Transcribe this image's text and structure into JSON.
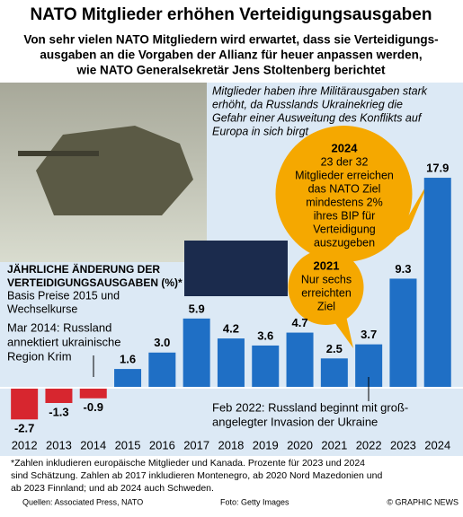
{
  "chart_data": {
    "type": "bar",
    "title": "NATO Mitglieder erhöhen Verteidigungsausgaben",
    "subtitle": [
      "Von sehr vielen NATO Mitgliedern wird erwartet, dass sie Verteidigungs-",
      "ausgaben  an die Vorgaben der Allianz für heuer anpassen werden,",
      "wie NATO Generalsekretär Jens Stoltenberg berichtet"
    ],
    "photo_caption": [
      "Mitglieder haben ihre Militärausgaben stark",
      "erhöht, da Russlands Ukrainekrieg die",
      "Gefahr einer Ausweitung des Konflikts auf",
      "Europa  in sich birgt"
    ],
    "chart_label": [
      "JÄHRLICHE ÄNDERUNG DER",
      "VERTEIDIGUNGSAUSGABEN (%)*"
    ],
    "chart_sublabel": [
      "Basis Preise 2015 und",
      "Wechselkurse"
    ],
    "categories": [
      "2012",
      "2013",
      "2014",
      "2015",
      "2016",
      "2017",
      "2018",
      "2019",
      "2020",
      "2021",
      "2022",
      "2023",
      "2024"
    ],
    "values": [
      -2.7,
      -1.3,
      -0.9,
      1.6,
      3.0,
      5.9,
      4.2,
      3.6,
      4.7,
      2.5,
      3.7,
      9.3,
      17.9
    ],
    "value_labels": [
      "-2.7",
      "-1.3",
      "-0.9",
      "1.6",
      "3.0",
      "5.9",
      "4.2",
      "3.6",
      "4.7",
      "2.5",
      "3.7",
      "9.3",
      "17.9"
    ],
    "color": "#1f6fc5",
    "negative_color": "#d7262f",
    "ylim": [
      -3.5,
      18.5
    ],
    "annotations": [
      {
        "lines": [
          "Mar 2014: Russland",
          "annektiert ukrainische",
          "Region Krim"
        ]
      },
      {
        "lines": [
          "Feb 2022: Russland beginnt mit groß-",
          "angelegter Invasion der Ukraine"
        ]
      }
    ],
    "bubbles": [
      {
        "heading": "2024",
        "lines": [
          "23 der 32",
          "Mitglieder erreichen",
          "das NATO Ziel",
          "mindestens 2%",
          "ihres BIP für",
          "Verteidigung",
          "auszugeben"
        ]
      },
      {
        "heading": "2021",
        "lines": [
          "Nur sechs",
          "erreichten",
          "Ziel"
        ]
      }
    ],
    "footnote": [
      "*Zahlen inkludieren europäische  Mitglieder und Kanada. Prozente für 2023 und 2024",
      "sind Schätzung. Zahlen ab 2017 inkludieren Montenegro, ab 2020 Nord Mazedonien und",
      "ab 2023  Finnland; und ab 2024 auch Schweden."
    ],
    "source": "Quellen: Associated Press, NATO",
    "photo_credit": "Foto: Getty Images",
    "copyright": "© GRAPHIC NEWS"
  }
}
